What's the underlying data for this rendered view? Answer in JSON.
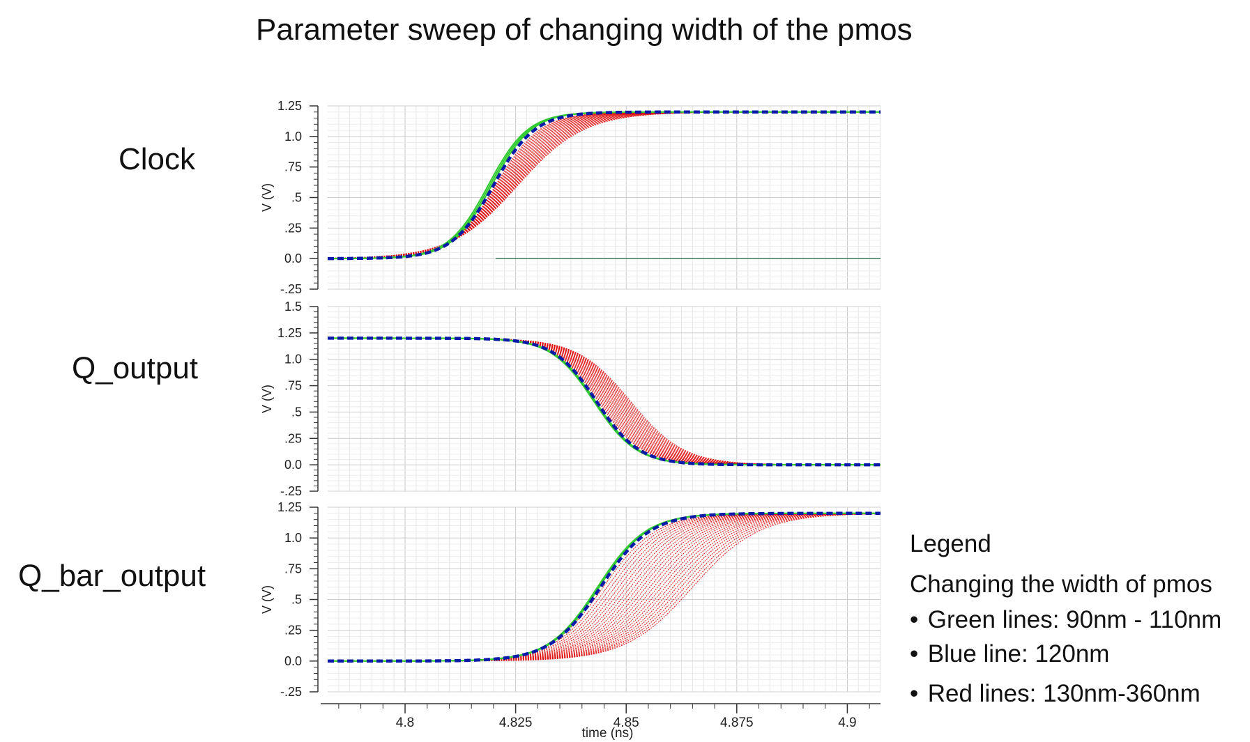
{
  "title": "Parameter sweep of changing width of the pmos",
  "row_labels": [
    "Clock",
    "Q_output",
    "Q_bar_output"
  ],
  "legend": {
    "title": "Legend",
    "subtitle": "Changing the width of pmos",
    "items": [
      {
        "text": "Green lines: 90nm - 110nm",
        "color": "#33cc33"
      },
      {
        "text": "Blue line: 120nm",
        "color": "#0a1aa8"
      },
      {
        "text": "Red lines: 130nm-360nm",
        "color": "#e01010"
      }
    ]
  },
  "chart_data": [
    {
      "type": "line",
      "name": "Clock",
      "ylabel": "V (V)",
      "xlim": [
        4.7825,
        4.9075
      ],
      "ylim": [
        -0.25,
        1.25
      ],
      "yticks": [
        1.25,
        1.0,
        0.75,
        0.5,
        0.25,
        0.0,
        -0.25
      ],
      "ytick_labels": [
        "1.25",
        "1.0",
        ".75",
        ".5",
        ".25",
        "0.0",
        "-.25"
      ],
      "grid": true,
      "sweep": {
        "shape": "rise",
        "low": 0.0,
        "high": 1.2,
        "green": {
          "t50": [
            4.8188,
            4.8192,
            4.8196
          ],
          "width": 0.0045
        },
        "blue": {
          "t50": 4.82,
          "width": 0.0047
        },
        "red": {
          "t50_first": 4.8205,
          "t50_last": 4.8255,
          "width_first": 0.005,
          "width_last": 0.0075,
          "count": 24
        }
      },
      "extra_flat_line": {
        "y": 0.0,
        "x_end": 4.9075
      }
    },
    {
      "type": "line",
      "name": "Q_output",
      "ylabel": "V (V)",
      "xlim": [
        4.7825,
        4.9075
      ],
      "ylim": [
        -0.25,
        1.5
      ],
      "yticks": [
        1.5,
        1.25,
        1.0,
        0.75,
        0.5,
        0.25,
        0.0,
        -0.25
      ],
      "ytick_labels": [
        "1.5",
        "1.25",
        "1.0",
        ".75",
        ".5",
        ".25",
        "0.0",
        "-.25"
      ],
      "grid": true,
      "sweep": {
        "shape": "fall",
        "low": 0.0,
        "high": 1.2,
        "green": {
          "t50": [
            4.8427,
            4.8429,
            4.8431
          ],
          "width": 0.0048
        },
        "blue": {
          "t50": 4.8433,
          "width": 0.0048
        },
        "red": {
          "t50_first": 4.8437,
          "t50_last": 4.851,
          "width_first": 0.005,
          "width_last": 0.006,
          "count": 24
        }
      }
    },
    {
      "type": "line",
      "name": "Q_bar_output",
      "ylabel": "V (V)",
      "xlabel": "time (ns)",
      "xlim": [
        4.7825,
        4.9075
      ],
      "xticks": [
        4.8,
        4.825,
        4.85,
        4.875,
        4.9
      ],
      "xtick_labels": [
        "4.8",
        "4.825",
        "4.85",
        "4.875",
        "4.9"
      ],
      "ylim": [
        -0.25,
        1.25
      ],
      "yticks": [
        1.25,
        1.0,
        0.75,
        0.5,
        0.25,
        0.0,
        -0.25
      ],
      "ytick_labels": [
        "1.25",
        "1.0",
        ".75",
        ".5",
        ".25",
        "0.0",
        "-.25"
      ],
      "grid": true,
      "sweep": {
        "shape": "rise",
        "low": 0.0,
        "high": 1.2,
        "green": {
          "t50": [
            4.8435,
            4.8437,
            4.8439
          ],
          "width": 0.0055
        },
        "blue": {
          "t50": 4.8442,
          "width": 0.0056
        },
        "red": {
          "t50_first": 4.8448,
          "t50_last": 4.865,
          "width_first": 0.006,
          "width_last": 0.0075,
          "count": 24
        }
      }
    }
  ]
}
